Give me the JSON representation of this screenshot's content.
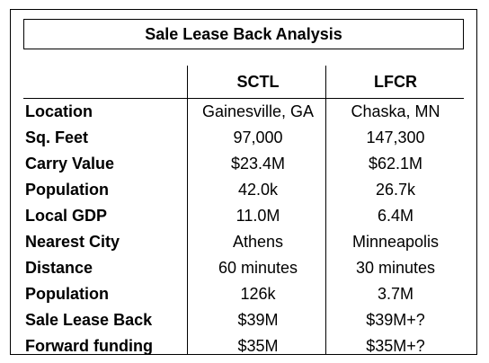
{
  "title": "Sale Lease Back Analysis",
  "columns": [
    "SCTL",
    "LFCR"
  ],
  "rows": [
    {
      "label": "Location",
      "sctl": "Gainesville, GA",
      "lfcr": "Chaska, MN"
    },
    {
      "label": "Sq. Feet",
      "sctl": "97,000",
      "lfcr": "147,300"
    },
    {
      "label": "Carry Value",
      "sctl": "$23.4M",
      "lfcr": "$62.1M"
    },
    {
      "label": "Population",
      "sctl": "42.0k",
      "lfcr": "26.7k"
    },
    {
      "label": "Local GDP",
      "sctl": "11.0M",
      "lfcr": "6.4M"
    },
    {
      "label": "Nearest City",
      "sctl": "Athens",
      "lfcr": "Minneapolis"
    },
    {
      "label": "Distance",
      "sctl": "60 minutes",
      "lfcr": "30 minutes"
    },
    {
      "label": "Population",
      "sctl": "126k",
      "lfcr": "3.7M"
    },
    {
      "label": "Sale Lease Back",
      "sctl": "$39M",
      "lfcr": "$39M+?"
    },
    {
      "label": "Forward funding",
      "sctl": "$35M",
      "lfcr": "$35M+?"
    }
  ],
  "colors": {
    "text": "#000000",
    "border": "#000000",
    "background": "#ffffff"
  }
}
